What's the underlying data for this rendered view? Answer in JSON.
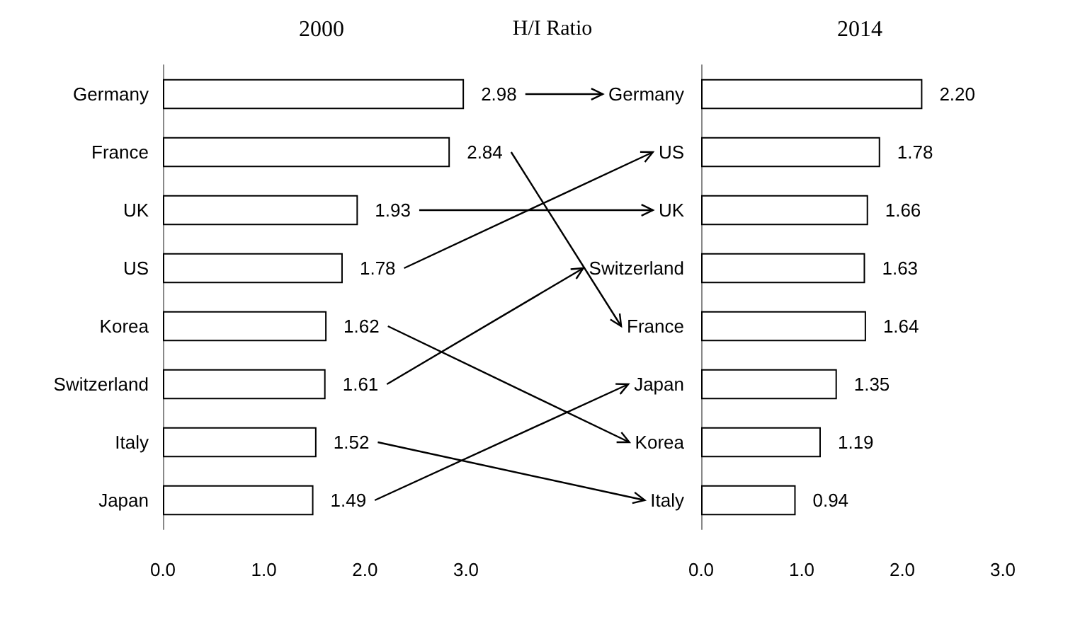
{
  "chart_data": [
    {
      "type": "bar",
      "orientation": "horizontal",
      "title": "2000",
      "annotations": [
        "H/I Ratio"
      ],
      "categories": [
        "Germany",
        "France",
        "UK",
        "US",
        "Korea",
        "Switzerland",
        "Italy",
        "Japan"
      ],
      "values": [
        2.98,
        2.84,
        1.93,
        1.78,
        1.62,
        1.61,
        1.52,
        1.49
      ],
      "color": "#ffffff",
      "data_labels": true,
      "xlim": [
        0,
        3
      ],
      "xticks": [
        {
          "value": 0,
          "label": "0.0"
        },
        {
          "value": 1,
          "label": "1.0"
        },
        {
          "value": 2,
          "label": "2.0"
        },
        {
          "value": 3,
          "label": "3.0"
        }
      ]
    },
    {
      "type": "bar",
      "orientation": "horizontal",
      "title": "2014",
      "categories": [
        "Germany",
        "US",
        "UK",
        "Switzerland",
        "France",
        "Japan",
        "Korea",
        "Italy"
      ],
      "values": [
        2.2,
        1.78,
        1.66,
        1.63,
        1.64,
        1.35,
        1.19,
        0.94
      ],
      "value_labels": [
        "2.20",
        "1.78",
        "1.66",
        "1.63",
        "1.64",
        "1.35",
        "1.19",
        "0.94"
      ],
      "color": "#ffffff",
      "xlim": [
        0,
        3
      ],
      "xticks": [
        {
          "value": 0,
          "label": "0.0"
        },
        {
          "value": 1,
          "label": "1.0"
        },
        {
          "value": 2,
          "label": "2.0"
        },
        {
          "value": 3,
          "label": "3.0"
        }
      ]
    }
  ]
}
